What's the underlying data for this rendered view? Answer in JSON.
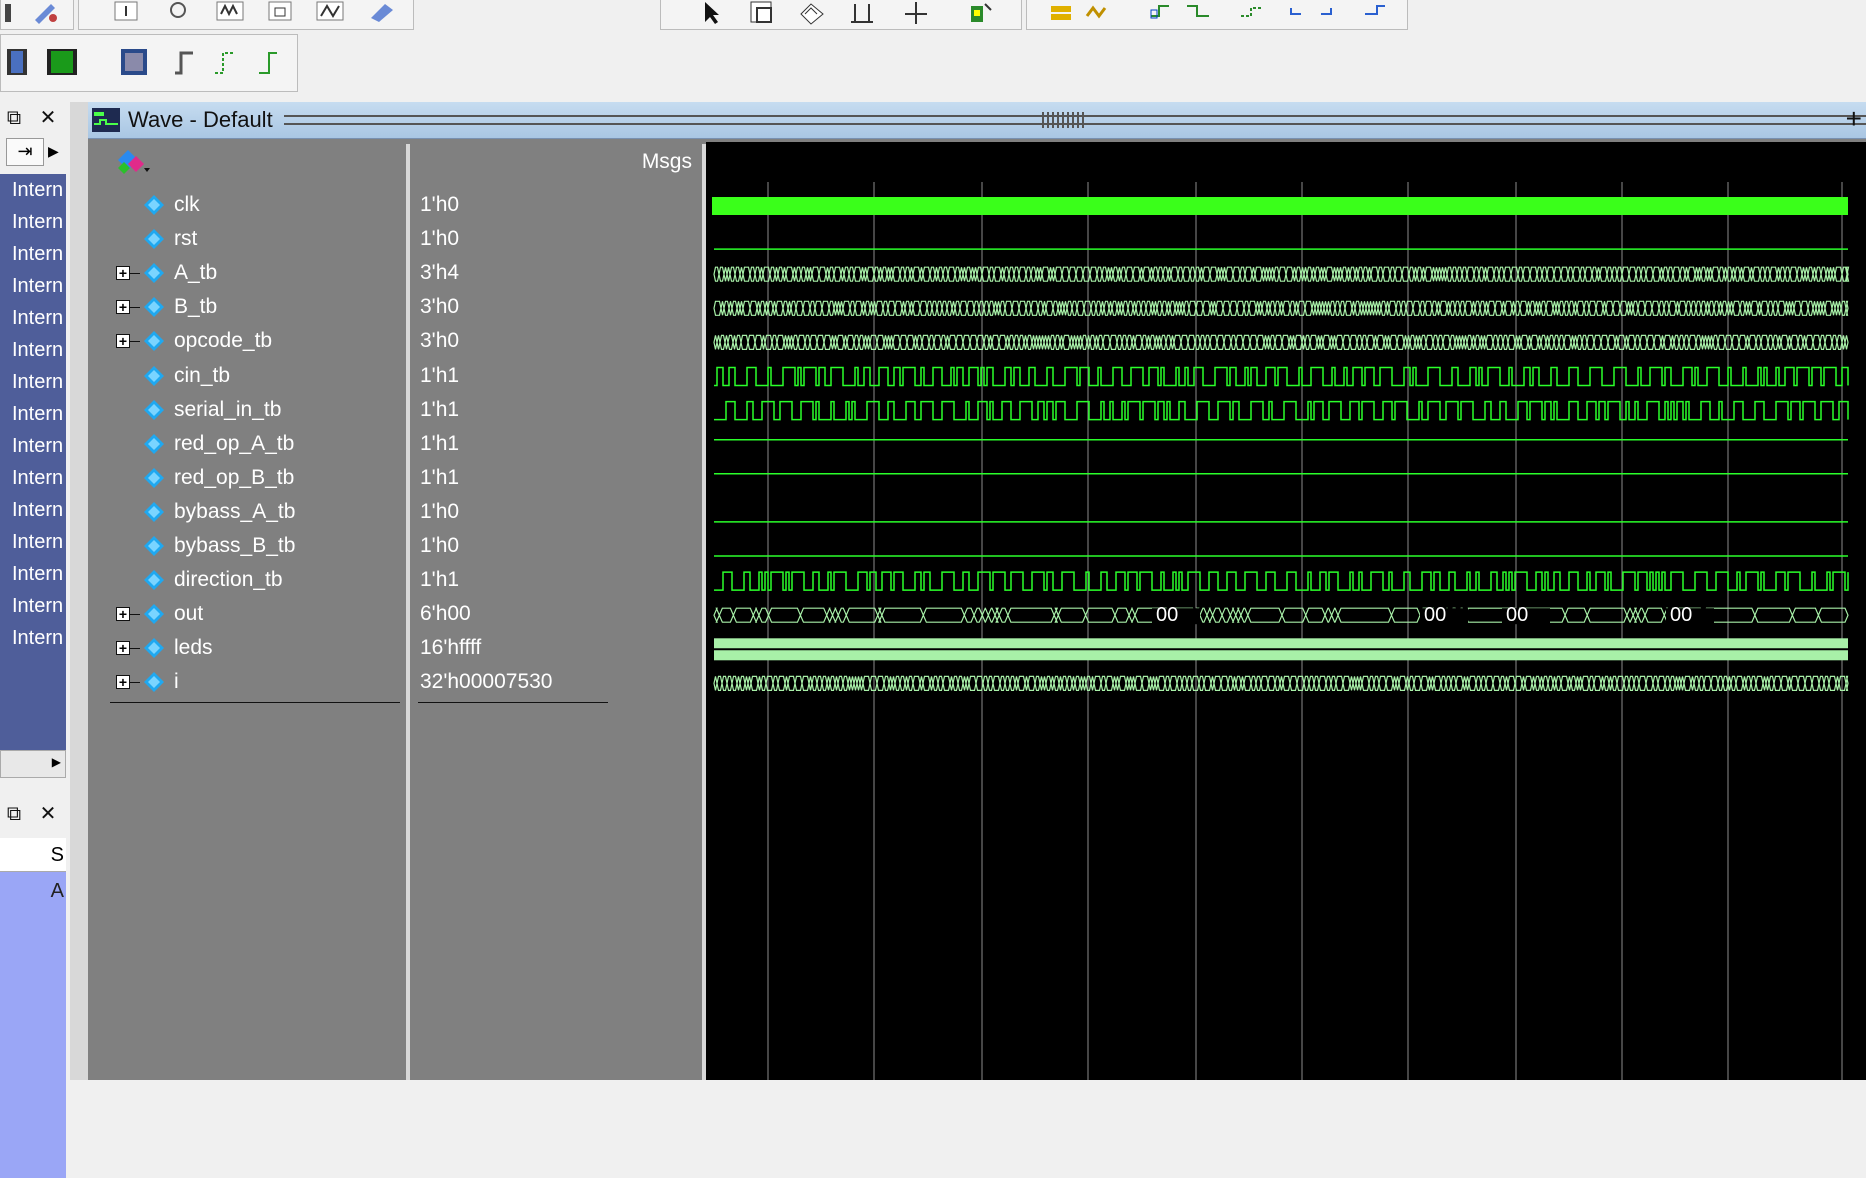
{
  "wave_window": {
    "title": "Wave - Default",
    "msgs_header": "Msgs"
  },
  "instance_panel": {
    "items": [
      "Intern",
      "Intern",
      "Intern",
      "Intern",
      "Intern",
      "Intern",
      "Intern",
      "Intern",
      "Intern",
      "Intern",
      "Intern",
      "Intern",
      "Intern",
      "Intern",
      "Intern"
    ]
  },
  "lower_panel": {
    "header_text": "S",
    "selected_text": "A"
  },
  "signals": [
    {
      "name": "clk",
      "value": "1'h0",
      "expandable": false
    },
    {
      "name": "rst",
      "value": "1'h0",
      "expandable": false
    },
    {
      "name": "A_tb",
      "value": "3'h4",
      "expandable": true
    },
    {
      "name": "B_tb",
      "value": "3'h0",
      "expandable": true
    },
    {
      "name": "opcode_tb",
      "value": "3'h0",
      "expandable": true
    },
    {
      "name": "cin_tb",
      "value": "1'h1",
      "expandable": false
    },
    {
      "name": "serial_in_tb",
      "value": "1'h1",
      "expandable": false
    },
    {
      "name": "red_op_A_tb",
      "value": "1'h1",
      "expandable": false
    },
    {
      "name": "red_op_B_tb",
      "value": "1'h1",
      "expandable": false
    },
    {
      "name": "bybass_A_tb",
      "value": "1'h0",
      "expandable": false
    },
    {
      "name": "bybass_B_tb",
      "value": "1'h0",
      "expandable": false
    },
    {
      "name": "direction_tb",
      "value": "1'h1",
      "expandable": false
    },
    {
      "name": "out",
      "value": "6'h00",
      "expandable": true
    },
    {
      "name": "leds",
      "value": "16'hffff",
      "expandable": true
    },
    {
      "name": "i",
      "value": "32'h00007530",
      "expandable": true
    }
  ],
  "waveforms": {
    "clk": {
      "kind": "dense_clock"
    },
    "rst": {
      "kind": "constant_low"
    },
    "A_tb": {
      "kind": "bus_dense"
    },
    "B_tb": {
      "kind": "bus_dense"
    },
    "opcode_tb": {
      "kind": "bus_dense"
    },
    "cin_tb": {
      "kind": "random_bit"
    },
    "serial_in_tb": {
      "kind": "random_bit"
    },
    "red_op_A_tb": {
      "kind": "constant_high"
    },
    "red_op_B_tb": {
      "kind": "constant_high"
    },
    "bybass_A_tb": {
      "kind": "constant_low"
    },
    "bybass_B_tb": {
      "kind": "constant_low"
    },
    "direction_tb": {
      "kind": "random_bit"
    },
    "out": {
      "kind": "bus_sparse",
      "labels": [
        "00",
        "00",
        "00",
        "00"
      ]
    },
    "leds": {
      "kind": "bus_constant"
    },
    "i": {
      "kind": "bus_dense"
    }
  },
  "colors": {
    "wave_green": "#2aff2a",
    "bus_green": "#a8f0a8",
    "grid": "#8c8c8c",
    "signal_icon": "#1fa8f0"
  },
  "icons": {
    "window": "wave-window-icon",
    "add_signal": "signal-palette-icon",
    "undock": "undock-icon",
    "close": "close-icon",
    "maximize": "plus-icon"
  }
}
